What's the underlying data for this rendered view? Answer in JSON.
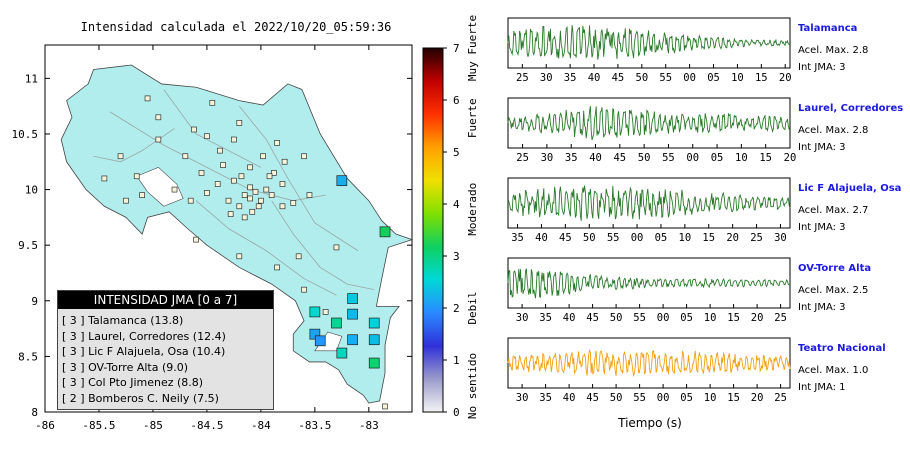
{
  "title": "Intensidad calculada el 2022/10/20_05:59:36",
  "map": {
    "x_ticks": [
      "-86",
      "-85.5",
      "-85",
      "-84.5",
      "-84",
      "-83.5",
      "-83"
    ],
    "x_values": [
      -86,
      -85.5,
      -85,
      -84.5,
      -84,
      -83.5,
      -83
    ],
    "y_ticks": [
      "8",
      "8.5",
      "9",
      "9.5",
      "10",
      "10.5",
      "11"
    ],
    "y_values": [
      8,
      8.5,
      9,
      9.5,
      10,
      10.5,
      11
    ],
    "xlim": [
      -86,
      -82.6
    ],
    "ylim": [
      8,
      11.3
    ],
    "land_color": "#b2eded",
    "small_stations": [
      [
        -85.05,
        10.82
      ],
      [
        -84.45,
        10.78
      ],
      [
        -84.95,
        10.65
      ],
      [
        -84.62,
        10.54
      ],
      [
        -84.2,
        10.6
      ],
      [
        -85.3,
        10.3
      ],
      [
        -85.15,
        10.12
      ],
      [
        -84.7,
        10.3
      ],
      [
        -84.55,
        10.15
      ],
      [
        -84.35,
        10.22
      ],
      [
        -84.25,
        10.08
      ],
      [
        -84.5,
        9.97
      ],
      [
        -84.65,
        9.9
      ],
      [
        -84.8,
        10.0
      ],
      [
        -85.1,
        9.95
      ],
      [
        -85.25,
        9.9
      ],
      [
        -84.3,
        9.9
      ],
      [
        -84.2,
        9.85
      ],
      [
        -84.15,
        9.95
      ],
      [
        -84.1,
        10.02
      ],
      [
        -84.05,
        9.98
      ],
      [
        -84.0,
        9.9
      ],
      [
        -83.95,
        10.0
      ],
      [
        -83.9,
        9.95
      ],
      [
        -84.02,
        9.85
      ],
      [
        -84.08,
        9.8
      ],
      [
        -84.18,
        10.12
      ],
      [
        -84.4,
        10.05
      ],
      [
        -83.88,
        10.15
      ],
      [
        -83.78,
        10.25
      ],
      [
        -83.8,
        9.85
      ],
      [
        -83.7,
        9.88
      ],
      [
        -83.98,
        10.3
      ],
      [
        -84.38,
        10.35
      ],
      [
        -84.1,
        10.2
      ],
      [
        -83.92,
        10.12
      ],
      [
        -84.28,
        9.78
      ],
      [
        -84.15,
        9.75
      ],
      [
        -83.55,
        9.95
      ],
      [
        -84.6,
        9.55
      ],
      [
        -84.2,
        9.4
      ],
      [
        -83.85,
        9.3
      ],
      [
        -83.65,
        9.4
      ],
      [
        -83.3,
        9.48
      ],
      [
        -84.5,
        10.48
      ],
      [
        -84.25,
        10.45
      ],
      [
        -83.85,
        10.42
      ],
      [
        -83.6,
        10.3
      ],
      [
        -84.95,
        10.45
      ],
      [
        -85.45,
        10.1
      ],
      [
        -83.8,
        10.05
      ],
      [
        -84.1,
        9.92
      ],
      [
        -83.4,
        8.9
      ],
      [
        -83.6,
        9.1
      ],
      [
        -82.85,
        8.05
      ]
    ],
    "intensity_stations": [
      {
        "lon": -83.25,
        "lat": 10.08,
        "v": 2.2
      },
      {
        "lon": -82.85,
        "lat": 9.62,
        "v": 3.2
      },
      {
        "lon": -83.15,
        "lat": 9.02,
        "v": 2.4
      },
      {
        "lon": -83.5,
        "lat": 8.9,
        "v": 2.6
      },
      {
        "lon": -83.15,
        "lat": 8.88,
        "v": 2.3
      },
      {
        "lon": -83.3,
        "lat": 8.8,
        "v": 2.9
      },
      {
        "lon": -82.95,
        "lat": 8.8,
        "v": 2.5
      },
      {
        "lon": -83.5,
        "lat": 8.7,
        "v": 2.1
      },
      {
        "lon": -83.45,
        "lat": 8.64,
        "v": 2.0
      },
      {
        "lon": -83.15,
        "lat": 8.65,
        "v": 2.2
      },
      {
        "lon": -82.95,
        "lat": 8.65,
        "v": 2.3
      },
      {
        "lon": -83.25,
        "lat": 8.53,
        "v": 2.7
      },
      {
        "lon": -82.95,
        "lat": 8.44,
        "v": 3.1
      }
    ]
  },
  "legend": {
    "header": "INTENSIDAD JMA [0 a 7]",
    "rows": [
      "[ 3 ]  Talamanca (13.8)",
      "[ 3 ]  Laurel, Corredores (12.4)",
      "[ 3 ]  Lic F Alajuela, Osa (10.4)",
      "[ 3 ]  OV-Torre Alta (9.0)",
      "[ 3 ]  Col Pto Jimenez (8.8)",
      "[ 2 ]  Bomberos C. Neily (7.5)"
    ]
  },
  "colorbar": {
    "ticks": [
      "0",
      "1",
      "2",
      "3",
      "4",
      "5",
      "6",
      "7"
    ],
    "tick_values": [
      0,
      1,
      2,
      3,
      4,
      5,
      6,
      7
    ],
    "labels": [
      "No sentido",
      "Debil",
      "Moderado",
      "Fuerte",
      "Muy Fuerte"
    ],
    "label_values": [
      0.5,
      2.0,
      3.9,
      5.65,
      7.0
    ],
    "stops": [
      "#f4f4f4",
      "#9b9bcb",
      "#3030d8",
      "#2a8aff",
      "#00d8d8",
      "#10d060",
      "#80e000",
      "#f0e000",
      "#ffa000",
      "#ff3000",
      "#c00000",
      "#200000"
    ]
  },
  "chart_data": [
    {
      "type": "line",
      "name": "Talamanca",
      "info1": "Acel. Max. 2.8",
      "info2": "Int JMA: 3",
      "color": "#2a7a2a",
      "ticks": [
        "25",
        "30",
        "35",
        "40",
        "45",
        "50",
        "55",
        "00",
        "05",
        "10",
        "15",
        "20"
      ],
      "tick_values": [
        25,
        30,
        35,
        40,
        45,
        50,
        55,
        60,
        65,
        70,
        75,
        80
      ],
      "xlim": [
        22,
        81
      ],
      "seed": 11,
      "amp_profile": [
        0.55,
        0.85,
        0.8,
        0.6,
        0.35,
        0.2,
        0.12
      ]
    },
    {
      "type": "line",
      "name": "Laurel, Corredores",
      "info1": "Acel. Max. 2.8",
      "info2": "Int JMA: 3",
      "color": "#2a7a2a",
      "ticks": [
        "25",
        "30",
        "35",
        "40",
        "45",
        "50",
        "55",
        "00",
        "05",
        "10",
        "15",
        "20"
      ],
      "tick_values": [
        25,
        30,
        35,
        40,
        45,
        50,
        55,
        60,
        65,
        70,
        75,
        80
      ],
      "xlim": [
        22,
        80
      ],
      "seed": 23,
      "amp_profile": [
        0.3,
        0.5,
        0.85,
        0.55,
        0.45,
        0.4,
        0.35
      ]
    },
    {
      "type": "line",
      "name": "Lic F Alajuela, Osa",
      "info1": "Acel. Max. 2.7",
      "info2": "Int JMA: 3",
      "color": "#2a7a2a",
      "ticks": [
        "35",
        "40",
        "45",
        "50",
        "55",
        "00",
        "05",
        "10",
        "15",
        "20",
        "25",
        "30"
      ],
      "tick_values": [
        35,
        40,
        45,
        50,
        55,
        60,
        65,
        70,
        75,
        80,
        85,
        90
      ],
      "xlim": [
        33,
        92
      ],
      "seed": 37,
      "amp_profile": [
        0.5,
        0.75,
        0.8,
        0.7,
        0.55,
        0.35,
        0.25
      ]
    },
    {
      "type": "line",
      "name": "OV-Torre Alta",
      "info1": "Acel. Max. 2.5",
      "info2": "Int JMA: 3",
      "color": "#2a7a2a",
      "ticks": [
        "30",
        "35",
        "40",
        "45",
        "50",
        "55",
        "00",
        "05",
        "10",
        "15",
        "20",
        "25"
      ],
      "tick_values": [
        30,
        35,
        40,
        45,
        50,
        55,
        60,
        65,
        70,
        75,
        80,
        85
      ],
      "xlim": [
        27,
        87
      ],
      "seed": 53,
      "amp_profile": [
        0.9,
        0.6,
        0.35,
        0.25,
        0.2,
        0.18,
        0.15
      ]
    },
    {
      "type": "line",
      "name": "Teatro Nacional",
      "info1": "Acel. Max. 1.0",
      "info2": "Int JMA: 1",
      "color": "#f0a010",
      "ticks": [
        "30",
        "35",
        "40",
        "45",
        "50",
        "55",
        "00",
        "05",
        "10",
        "15",
        "20",
        "25"
      ],
      "tick_values": [
        30,
        35,
        40,
        45,
        50,
        55,
        60,
        65,
        70,
        75,
        80,
        85
      ],
      "xlim": [
        27,
        87
      ],
      "seed": 71,
      "amp_profile": [
        0.35,
        0.5,
        0.6,
        0.6,
        0.55,
        0.45,
        0.35
      ]
    }
  ],
  "xlabel": "Tiempo (s)"
}
